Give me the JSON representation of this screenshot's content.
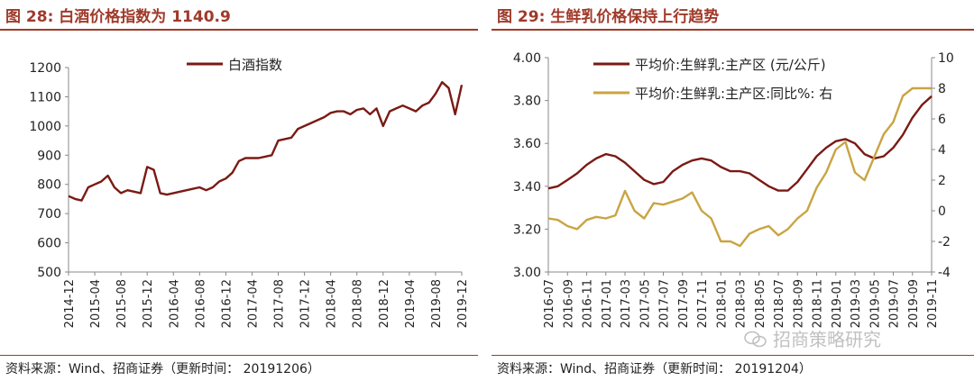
{
  "left_panel": {
    "title": "图 28:  白酒价格指数为 1140.9",
    "source": "资料来源：Wind、招商证券（更新时间： 20191206）"
  },
  "right_panel": {
    "title": "图 29:  生鲜乳价格保持上行趋势",
    "source": "资料来源：Wind、招商证券（更新时间： 20191204）"
  },
  "watermark": {
    "text": "招商策略研究",
    "icon": "wechat-icon"
  },
  "colors": {
    "primary": "#7a1a14",
    "secondary": "#c9a443",
    "title": "#a03a2a",
    "axis": "#888888"
  },
  "chart_data": [
    {
      "type": "line",
      "title": "白酒价格指数为 1140.9",
      "xlabel": "",
      "ylabel": "",
      "ylim": [
        500,
        1200
      ],
      "yticks": [
        500,
        600,
        700,
        800,
        900,
        1000,
        1100,
        1200
      ],
      "xticks": [
        "2014-12",
        "2015-04",
        "2015-08",
        "2015-12",
        "2016-04",
        "2016-08",
        "2016-12",
        "2017-04",
        "2017-08",
        "2017-12",
        "2018-04",
        "2018-08",
        "2018-12",
        "2019-04",
        "2019-08",
        "2019-12"
      ],
      "grid": false,
      "legend": "top-center",
      "series": [
        {
          "name": "白酒指数",
          "color": "#7a1a14",
          "x": [
            "2014-12",
            "2015-01",
            "2015-02",
            "2015-03",
            "2015-04",
            "2015-05",
            "2015-06",
            "2015-07",
            "2015-08",
            "2015-09",
            "2015-10",
            "2015-11",
            "2015-12",
            "2016-01",
            "2016-02",
            "2016-03",
            "2016-04",
            "2016-05",
            "2016-06",
            "2016-07",
            "2016-08",
            "2016-09",
            "2016-10",
            "2016-11",
            "2016-12",
            "2017-01",
            "2017-02",
            "2017-03",
            "2017-04",
            "2017-05",
            "2017-06",
            "2017-07",
            "2017-08",
            "2017-09",
            "2017-10",
            "2017-11",
            "2017-12",
            "2018-01",
            "2018-02",
            "2018-03",
            "2018-04",
            "2018-05",
            "2018-06",
            "2018-07",
            "2018-08",
            "2018-09",
            "2018-10",
            "2018-11",
            "2018-12",
            "2019-01",
            "2019-02",
            "2019-03",
            "2019-04",
            "2019-05",
            "2019-06",
            "2019-07",
            "2019-08",
            "2019-09",
            "2019-10",
            "2019-11",
            "2019-12"
          ],
          "values": [
            760,
            750,
            745,
            790,
            800,
            810,
            830,
            790,
            770,
            780,
            775,
            770,
            860,
            850,
            770,
            765,
            770,
            775,
            780,
            785,
            790,
            780,
            790,
            810,
            820,
            840,
            880,
            890,
            890,
            890,
            895,
            900,
            950,
            955,
            960,
            990,
            1000,
            1010,
            1020,
            1030,
            1045,
            1050,
            1050,
            1040,
            1055,
            1060,
            1040,
            1060,
            1000,
            1050,
            1060,
            1070,
            1060,
            1050,
            1070,
            1080,
            1110,
            1150,
            1130,
            1040,
            1140.9
          ]
        }
      ]
    },
    {
      "type": "line",
      "title": "生鲜乳价格保持上行趋势",
      "xlabel": "",
      "ylabel": "",
      "ylim": [
        3.0,
        4.0
      ],
      "yticks": [
        3.0,
        3.2,
        3.4,
        3.6,
        3.8,
        4.0
      ],
      "y2lim": [
        -4,
        10
      ],
      "y2ticks": [
        -4,
        -2,
        0,
        2,
        4,
        6,
        8,
        10
      ],
      "xticks": [
        "2016-07",
        "2016-09",
        "2016-11",
        "2017-01",
        "2017-03",
        "2017-05",
        "2017-07",
        "2017-09",
        "2017-11",
        "2018-01",
        "2018-03",
        "2018-05",
        "2018-07",
        "2018-09",
        "2018-11",
        "2019-01",
        "2019-03",
        "2019-05",
        "2019-07",
        "2019-09",
        "2019-11"
      ],
      "grid": false,
      "legend": "top-left",
      "series": [
        {
          "name": "平均价:生鲜乳:主产区 (元/公斤)",
          "axis": "left",
          "color": "#7a1a14",
          "x": [
            "2016-07",
            "2016-08",
            "2016-09",
            "2016-10",
            "2016-11",
            "2016-12",
            "2017-01",
            "2017-02",
            "2017-03",
            "2017-04",
            "2017-05",
            "2017-06",
            "2017-07",
            "2017-08",
            "2017-09",
            "2017-10",
            "2017-11",
            "2017-12",
            "2018-01",
            "2018-02",
            "2018-03",
            "2018-04",
            "2018-05",
            "2018-06",
            "2018-07",
            "2018-08",
            "2018-09",
            "2018-10",
            "2018-11",
            "2018-12",
            "2019-01",
            "2019-02",
            "2019-03",
            "2019-04",
            "2019-05",
            "2019-06",
            "2019-07",
            "2019-08",
            "2019-09",
            "2019-10",
            "2019-11"
          ],
          "values": [
            3.39,
            3.4,
            3.43,
            3.46,
            3.5,
            3.53,
            3.55,
            3.54,
            3.51,
            3.47,
            3.43,
            3.41,
            3.42,
            3.47,
            3.5,
            3.52,
            3.53,
            3.52,
            3.49,
            3.47,
            3.47,
            3.46,
            3.43,
            3.4,
            3.38,
            3.38,
            3.42,
            3.48,
            3.54,
            3.58,
            3.61,
            3.62,
            3.6,
            3.55,
            3.53,
            3.54,
            3.58,
            3.64,
            3.72,
            3.78,
            3.82
          ]
        },
        {
          "name": "平均价:生鲜乳:主产区:同比%: 右",
          "axis": "right",
          "color": "#c9a443",
          "x": [
            "2016-07",
            "2016-08",
            "2016-09",
            "2016-10",
            "2016-11",
            "2016-12",
            "2017-01",
            "2017-02",
            "2017-03",
            "2017-04",
            "2017-05",
            "2017-06",
            "2017-07",
            "2017-08",
            "2017-09",
            "2017-10",
            "2017-11",
            "2017-12",
            "2018-01",
            "2018-02",
            "2018-03",
            "2018-04",
            "2018-05",
            "2018-06",
            "2018-07",
            "2018-08",
            "2018-09",
            "2018-10",
            "2018-11",
            "2018-12",
            "2019-01",
            "2019-02",
            "2019-03",
            "2019-04",
            "2019-05",
            "2019-06",
            "2019-07",
            "2019-08",
            "2019-09",
            "2019-10",
            "2019-11"
          ],
          "values": [
            -0.5,
            -0.6,
            -1.0,
            -1.2,
            -0.6,
            -0.4,
            -0.5,
            -0.3,
            1.3,
            0.0,
            -0.5,
            0.5,
            0.4,
            0.6,
            0.8,
            1.2,
            0.0,
            -0.5,
            -2.0,
            -2.0,
            -2.3,
            -1.5,
            -1.2,
            -1.0,
            -1.6,
            -1.2,
            -0.5,
            0.0,
            1.5,
            2.5,
            4.0,
            4.5,
            2.5,
            2.0,
            3.5,
            5.0,
            5.8,
            7.5,
            8.0,
            8.0,
            8.0
          ]
        }
      ]
    }
  ]
}
